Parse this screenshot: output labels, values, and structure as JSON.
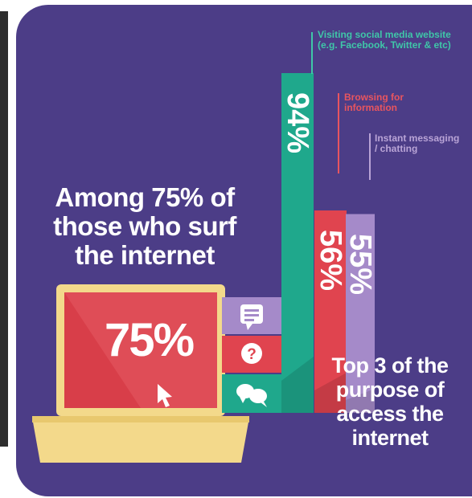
{
  "headline": "Among 75% of those who surf the internet",
  "subheadline": "Top 3 of the purpose of access the internet",
  "laptop_value": "75%",
  "colors": {
    "background": "#4c3d87",
    "social": "#1fa88c",
    "browsing": "#e0444f",
    "messaging": "#a58ac9",
    "laptop_body": "#f3d98b",
    "laptop_screen": "#e0444f"
  },
  "icons": [
    "chat-icon",
    "question-icon",
    "speech-bubbles-icon",
    "cursor-arrow-icon"
  ],
  "chart_data": {
    "type": "bar",
    "title": "",
    "categories": [
      "Visiting social media website (e.g. Facebook, Twitter & etc)",
      "Browsing for information",
      "Instant messaging / chatting"
    ],
    "values": [
      94,
      56,
      55
    ],
    "value_labels": [
      "94%",
      "56%",
      "55%"
    ],
    "ylim": [
      0,
      100
    ]
  }
}
